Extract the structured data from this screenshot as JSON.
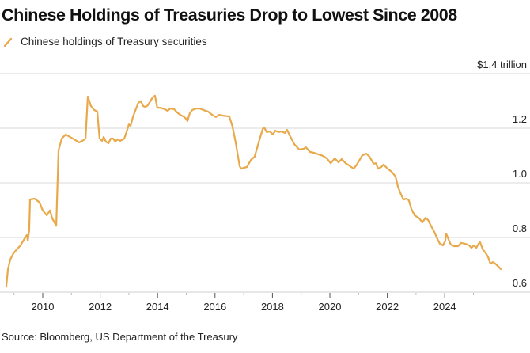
{
  "chart_data": {
    "type": "line",
    "title": "Chinese Holdings of Treasuries Drop to Lowest Since 2008",
    "legend": [
      "Chinese holdings of Treasury securities"
    ],
    "legend_placement": "top-left",
    "source": "Source: Bloomberg, US Department of the Treasury",
    "xlabel": "",
    "ylabel": "$ trillion",
    "y_unit_label": "$1.4 trillion",
    "ylim": [
      0.6,
      1.4
    ],
    "yticks": [
      0.6,
      0.8,
      1.0,
      1.2,
      1.4
    ],
    "ytick_labels": [
      "0.6",
      "0.8",
      "1.0",
      "1.2",
      "$1.4 trillion"
    ],
    "xlim": [
      2008.6,
      2026.5
    ],
    "xticks_major": [
      2010,
      2012,
      2014,
      2016,
      2018,
      2020,
      2022,
      2024
    ],
    "xtick_labels": [
      "2010",
      "2012",
      "2014",
      "2016",
      "2018",
      "2020",
      "2022",
      "2024"
    ],
    "xticks_minor": [
      2009,
      2011,
      2013,
      2015,
      2017,
      2019,
      2021,
      2023,
      2025
    ],
    "grid": "horizontal",
    "series": [
      {
        "name": "Chinese holdings of Treasury securities",
        "color": "#e8a94a",
        "x": [
          2008.73,
          2008.79,
          2008.87,
          2008.98,
          2009.12,
          2009.23,
          2009.31,
          2009.39,
          2009.45,
          2009.48,
          2009.53,
          2009.56,
          2009.72,
          2009.89,
          2010.0,
          2010.14,
          2010.25,
          2010.33,
          2010.47,
          2010.55,
          2010.66,
          2010.8,
          2011.05,
          2011.27,
          2011.38,
          2011.49,
          2011.57,
          2011.68,
          2011.79,
          2011.9,
          2011.98,
          2012.07,
          2012.12,
          2012.2,
          2012.29,
          2012.37,
          2012.45,
          2012.53,
          2012.59,
          2012.7,
          2012.84,
          2012.92,
          2013.0,
          2013.06,
          2013.14,
          2013.25,
          2013.33,
          2013.42,
          2013.5,
          2013.58,
          2013.66,
          2013.75,
          2013.83,
          2013.91,
          2013.99,
          2014.1,
          2014.24,
          2014.35,
          2014.44,
          2014.57,
          2014.68,
          2014.79,
          2014.9,
          2014.99,
          2015.04,
          2015.12,
          2015.21,
          2015.34,
          2015.48,
          2015.59,
          2015.76,
          2015.9,
          2016.03,
          2016.14,
          2016.28,
          2016.5,
          2016.61,
          2016.72,
          2016.86,
          2016.91,
          2017.0,
          2017.11,
          2017.25,
          2017.38,
          2017.52,
          2017.66,
          2017.71,
          2017.8,
          2017.91,
          2018.02,
          2018.1,
          2018.21,
          2018.32,
          2018.43,
          2018.51,
          2018.6,
          2018.76,
          2018.93,
          2019.09,
          2019.17,
          2019.31,
          2019.45,
          2019.61,
          2019.75,
          2019.89,
          2020.03,
          2020.17,
          2020.3,
          2020.41,
          2020.55,
          2020.66,
          2020.83,
          2020.94,
          2021.13,
          2021.27,
          2021.38,
          2021.52,
          2021.6,
          2021.68,
          2021.79,
          2021.87,
          2022.01,
          2022.15,
          2022.29,
          2022.37,
          2022.48,
          2022.56,
          2022.67,
          2022.75,
          2022.84,
          2022.95,
          2023.11,
          2023.22,
          2023.33,
          2023.42,
          2023.53,
          2023.64,
          2023.72,
          2023.83,
          2023.94,
          2024.02,
          2024.05,
          2024.13,
          2024.21,
          2024.33,
          2024.46,
          2024.57,
          2024.71,
          2024.85,
          2024.93,
          2025.01,
          2025.1,
          2025.18,
          2025.23,
          2025.32,
          2025.43,
          2025.51,
          2025.59,
          2025.68,
          2025.76,
          2025.87,
          2025.95
        ],
        "values": [
          0.62,
          0.684,
          0.719,
          0.742,
          0.759,
          0.771,
          0.786,
          0.8,
          0.809,
          0.788,
          0.826,
          0.939,
          0.942,
          0.928,
          0.899,
          0.881,
          0.899,
          0.87,
          0.843,
          1.119,
          1.162,
          1.177,
          1.162,
          1.148,
          1.154,
          1.162,
          1.316,
          1.281,
          1.267,
          1.261,
          1.162,
          1.154,
          1.168,
          1.151,
          1.145,
          1.162,
          1.162,
          1.151,
          1.159,
          1.154,
          1.162,
          1.186,
          1.214,
          1.209,
          1.241,
          1.272,
          1.293,
          1.299,
          1.281,
          1.278,
          1.284,
          1.299,
          1.313,
          1.319,
          1.275,
          1.275,
          1.27,
          1.264,
          1.272,
          1.27,
          1.258,
          1.249,
          1.243,
          1.235,
          1.226,
          1.255,
          1.267,
          1.272,
          1.272,
          1.267,
          1.261,
          1.249,
          1.241,
          1.249,
          1.246,
          1.243,
          1.206,
          1.148,
          1.061,
          1.052,
          1.055,
          1.058,
          1.084,
          1.096,
          1.148,
          1.197,
          1.203,
          1.186,
          1.188,
          1.177,
          1.191,
          1.186,
          1.188,
          1.183,
          1.194,
          1.174,
          1.142,
          1.122,
          1.125,
          1.13,
          1.113,
          1.11,
          1.104,
          1.099,
          1.09,
          1.072,
          1.09,
          1.075,
          1.087,
          1.072,
          1.064,
          1.052,
          1.067,
          1.101,
          1.107,
          1.096,
          1.07,
          1.072,
          1.052,
          1.058,
          1.067,
          1.052,
          1.041,
          1.023,
          0.986,
          0.957,
          0.939,
          0.942,
          0.936,
          0.904,
          0.881,
          0.87,
          0.855,
          0.872,
          0.864,
          0.841,
          0.82,
          0.8,
          0.777,
          0.771,
          0.788,
          0.814,
          0.794,
          0.774,
          0.768,
          0.768,
          0.78,
          0.777,
          0.771,
          0.762,
          0.771,
          0.762,
          0.777,
          0.783,
          0.757,
          0.742,
          0.728,
          0.704,
          0.71,
          0.704,
          0.693,
          0.684
        ]
      }
    ]
  }
}
